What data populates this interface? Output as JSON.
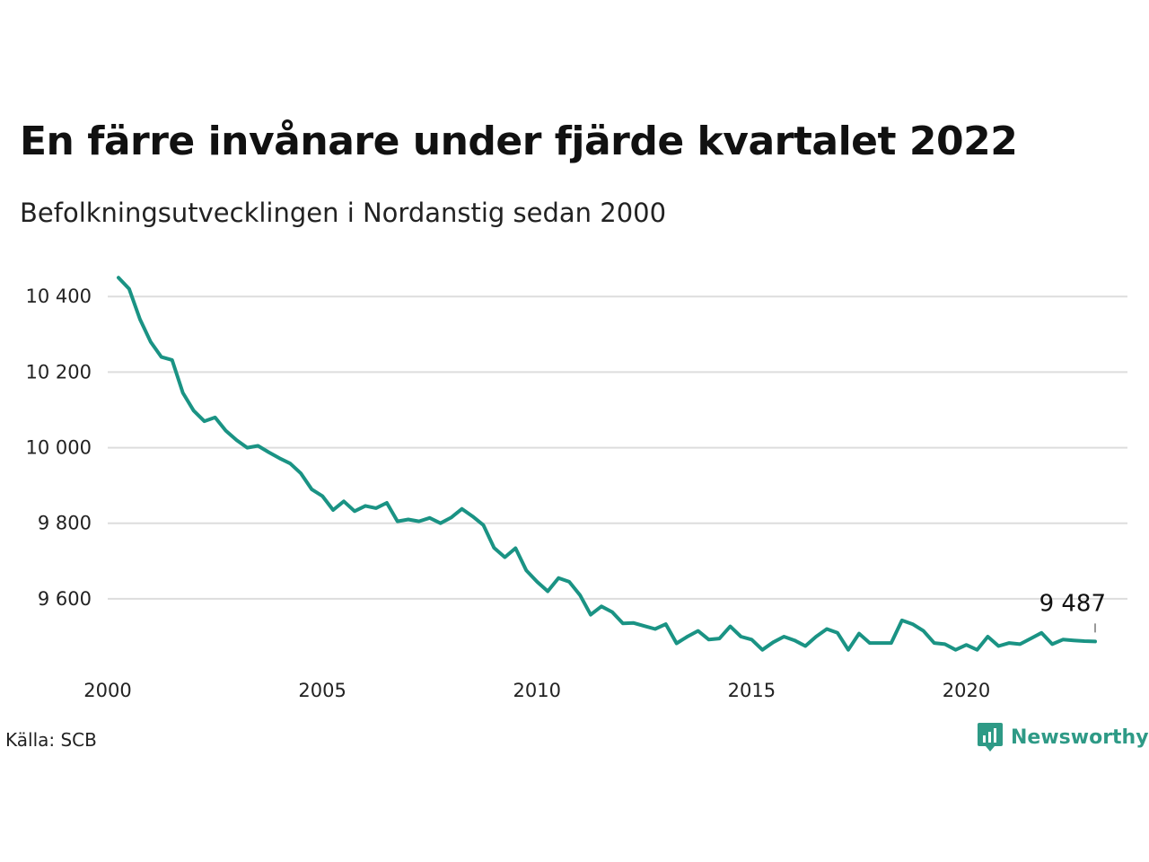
{
  "title": "En färre invånare under fjärde kvartalet 2022",
  "subtitle": "Befolkningsutvecklingen i Nordanstig sedan 2000",
  "source": "Källa: SCB",
  "brand": "Newsworthy",
  "colors": {
    "line": "#1a9384",
    "grid": "#dddddd",
    "brand": "#2e9a86"
  },
  "chart_data": {
    "type": "line",
    "title": "En färre invånare under fjärde kvartalet 2022",
    "subtitle": "Befolkningsutvecklingen i Nordanstig sedan 2000",
    "xlim": [
      2000,
      2023
    ],
    "ylim": [
      9450,
      10460
    ],
    "x_ticks": [
      2000,
      2005,
      2010,
      2015,
      2020
    ],
    "y_ticks": [
      9600,
      9800,
      10000,
      10200,
      10400
    ],
    "y_tick_labels": [
      "9 600",
      "9 800",
      "10 000",
      "10 200",
      "10 400"
    ],
    "grid": true,
    "end_label": "9 487",
    "series": [
      {
        "x": [
          2000.25,
          2000.5,
          2000.75,
          2001.0,
          2001.25,
          2001.5,
          2001.75,
          2002.0,
          2002.25,
          2002.5,
          2002.75,
          2003.0,
          2003.25,
          2003.5,
          2003.75,
          2004.0,
          2004.25,
          2004.5,
          2004.75,
          2005.0,
          2005.25,
          2005.5,
          2005.75,
          2006.0,
          2006.25,
          2006.5,
          2006.75,
          2007.0,
          2007.25,
          2007.5,
          2007.75,
          2008.0,
          2008.25,
          2008.5,
          2008.75,
          2009.0,
          2009.25,
          2009.5,
          2009.75,
          2010.0,
          2010.25,
          2010.5,
          2010.75,
          2011.0,
          2011.25,
          2011.5,
          2011.75,
          2012.0,
          2012.25,
          2012.5,
          2012.75,
          2013.0,
          2013.25,
          2013.5,
          2013.75,
          2014.0,
          2014.25,
          2014.5,
          2014.75,
          2015.0,
          2015.25,
          2015.5,
          2015.75,
          2016.0,
          2016.25,
          2016.5,
          2016.75,
          2017.0,
          2017.25,
          2017.5,
          2017.75,
          2018.0,
          2018.25,
          2018.5,
          2018.75,
          2019.0,
          2019.25,
          2019.5,
          2019.75,
          2020.0,
          2020.25,
          2020.5,
          2020.75,
          2021.0,
          2021.25,
          2021.5,
          2021.75,
          2022.0,
          2022.25,
          2022.5,
          2022.75,
          2023.0
        ],
        "values": [
          10450,
          10420,
          10340,
          10280,
          10240,
          10232,
          10145,
          10098,
          10070,
          10080,
          10045,
          10020,
          10000,
          10005,
          9988,
          9972,
          9958,
          9932,
          9890,
          9872,
          9835,
          9858,
          9832,
          9846,
          9840,
          9854,
          9805,
          9810,
          9805,
          9814,
          9800,
          9815,
          9838,
          9818,
          9795,
          9735,
          9710,
          9734,
          9675,
          9645,
          9620,
          9655,
          9645,
          9610,
          9558,
          9580,
          9565,
          9535,
          9536,
          9528,
          9520,
          9533,
          9482,
          9500,
          9515,
          9492,
          9495,
          9527,
          9500,
          9492,
          9465,
          9485,
          9500,
          9490,
          9475,
          9500,
          9520,
          9510,
          9465,
          9508,
          9483,
          9483,
          9483,
          9543,
          9533,
          9515,
          9483,
          9480,
          9465,
          9478,
          9465,
          9500,
          9475,
          9483,
          9480,
          9495,
          9510,
          9480,
          9492,
          9490,
          9488,
          9487
        ]
      }
    ]
  }
}
